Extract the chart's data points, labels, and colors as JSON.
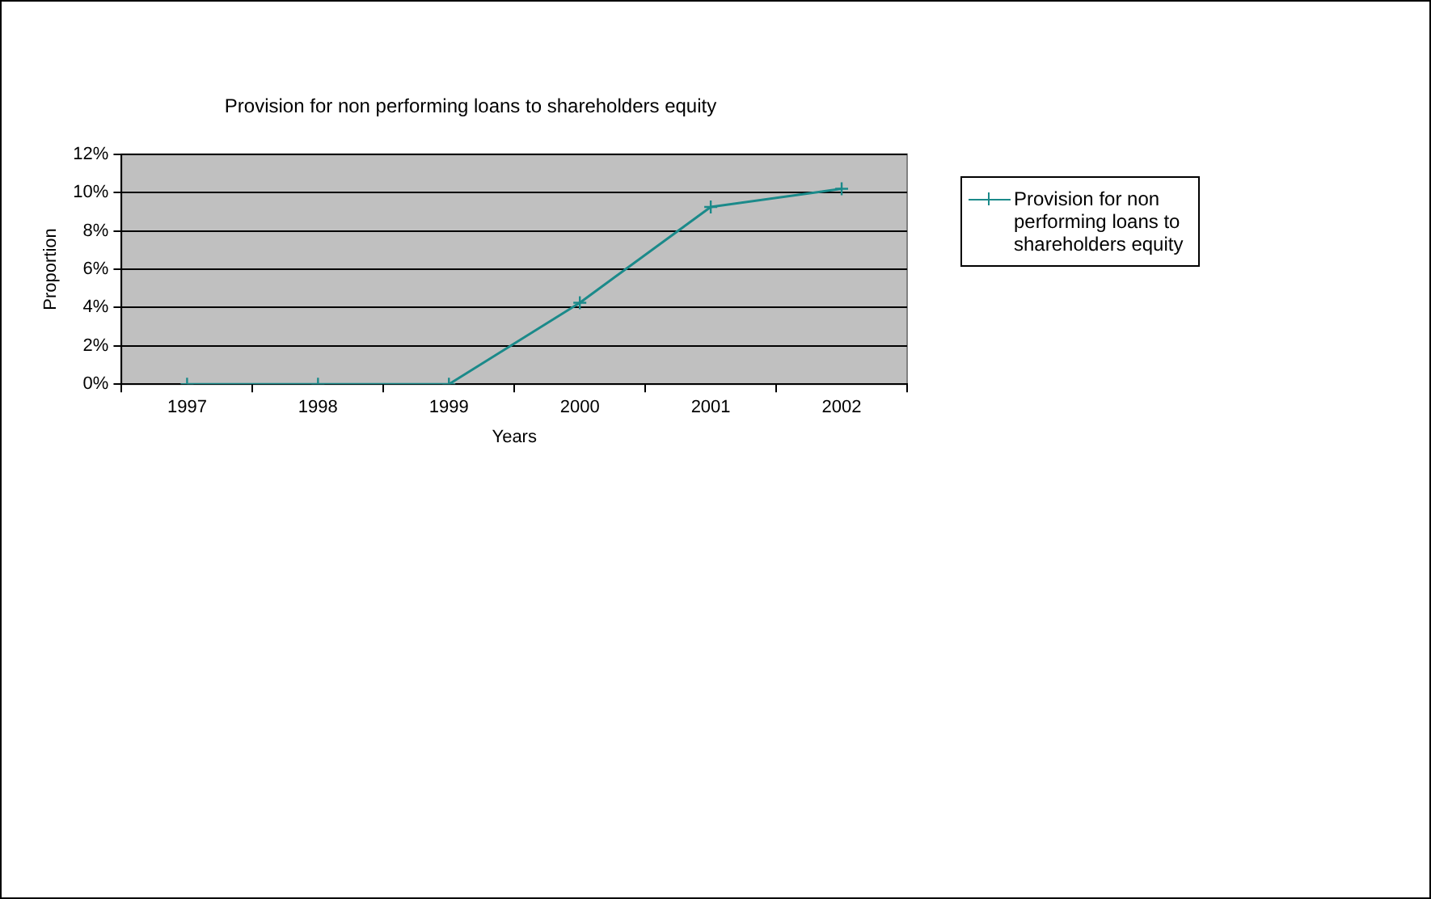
{
  "chart_data": {
    "type": "line",
    "title": "Provision for non performing loans to shareholders equity",
    "xlabel": "Years",
    "ylabel": "Proportion",
    "categories": [
      "1997",
      "1998",
      "1999",
      "2000",
      "2001",
      "2002"
    ],
    "series": [
      {
        "name": "Provision for non performing loans to shareholders equity",
        "color": "#1b8a8a",
        "values": [
          0,
          0,
          0,
          4.25,
          9.25,
          10.2
        ]
      }
    ],
    "ylim": [
      0,
      12
    ],
    "yticks": [
      {
        "value": 0,
        "label": "0%"
      },
      {
        "value": 2,
        "label": "2%"
      },
      {
        "value": 4,
        "label": "4%"
      },
      {
        "value": 6,
        "label": "6%"
      },
      {
        "value": 8,
        "label": "8%"
      },
      {
        "value": 10,
        "label": "10%"
      },
      {
        "value": 12,
        "label": "12%"
      }
    ],
    "grid": "y",
    "legend": "right",
    "marker": "cross",
    "line_style": "solid"
  }
}
